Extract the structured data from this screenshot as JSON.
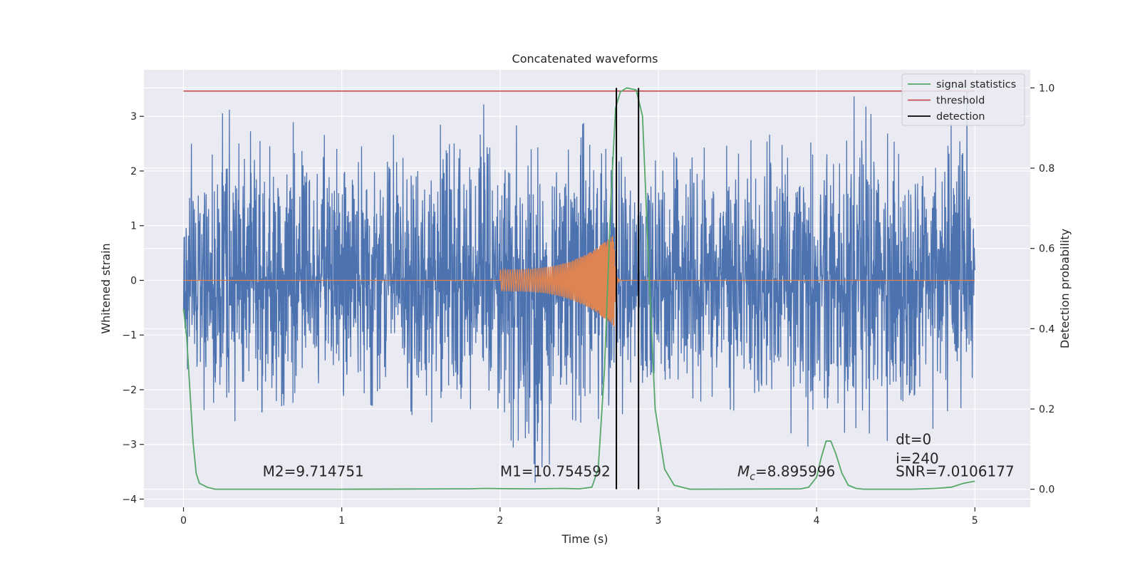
{
  "chart_data": {
    "type": "line",
    "title": "Concatenated waveforms",
    "xlabel": "Time (s)",
    "ylabel_left": "Whitened strain",
    "ylabel_right": "Detection probability",
    "xlim": [
      -0.25,
      5.35
    ],
    "ylim_left": [
      -4.15,
      3.85
    ],
    "ylim_right": [
      -0.045,
      1.045
    ],
    "grid": true,
    "legend_position": "top-right",
    "x_ticks": [
      0,
      1,
      2,
      3,
      4,
      5
    ],
    "x_tick_labels": [
      "0",
      "1",
      "2",
      "3",
      "4",
      "5"
    ],
    "y_left_ticks": [
      -4,
      -3,
      -2,
      -1,
      0,
      1,
      2,
      3
    ],
    "y_left_tick_labels": [
      "−4",
      "−3",
      "−2",
      "−1",
      "0",
      "1",
      "2",
      "3"
    ],
    "y_right_ticks": [
      0.0,
      0.2,
      0.4,
      0.6,
      0.8,
      1.0
    ],
    "y_right_tick_labels": [
      "0.0",
      "0.2",
      "0.4",
      "0.6",
      "0.8",
      "1.0"
    ],
    "colors": {
      "strain": "#4c72b0",
      "template": "#dd8452",
      "signal_statistics": "#55a868",
      "threshold": "#c44e52",
      "detection": "#000000",
      "plot_bg": "#eaeaf2",
      "grid": "#ffffff"
    },
    "series": [
      {
        "name": "",
        "role": "whitened-strain",
        "axis": "left",
        "x_range": [
          0,
          5
        ],
        "envelope_max": [
          [
            0.0,
            1.4
          ],
          [
            0.05,
            2.5
          ],
          [
            0.28,
            3.15
          ],
          [
            0.5,
            2.5
          ],
          [
            0.77,
            3.05
          ],
          [
            1.0,
            2.3
          ],
          [
            1.25,
            2.6
          ],
          [
            1.5,
            2.8
          ],
          [
            1.8,
            3.25
          ],
          [
            1.95,
            3.2
          ],
          [
            2.2,
            2.6
          ],
          [
            2.5,
            2.8
          ],
          [
            2.65,
            3.2
          ],
          [
            2.88,
            2.1
          ],
          [
            3.0,
            2.6
          ],
          [
            3.25,
            2.65
          ],
          [
            3.5,
            2.6
          ],
          [
            3.75,
            3.05
          ],
          [
            4.0,
            2.75
          ],
          [
            4.25,
            3.4
          ],
          [
            4.5,
            2.5
          ],
          [
            4.75,
            2.75
          ],
          [
            4.95,
            3.45
          ],
          [
            5.0,
            1.5
          ]
        ],
        "envelope_min": [
          [
            0.0,
            -1.4
          ],
          [
            0.1,
            -2.3
          ],
          [
            0.25,
            -2.65
          ],
          [
            0.5,
            -2.4
          ],
          [
            0.74,
            -2.2
          ],
          [
            1.0,
            -2.1
          ],
          [
            1.2,
            -2.3
          ],
          [
            1.5,
            -2.5
          ],
          [
            1.75,
            -2.85
          ],
          [
            1.9,
            -2.5
          ],
          [
            2.18,
            -3.8
          ],
          [
            2.37,
            -3.35
          ],
          [
            2.6,
            -2.55
          ],
          [
            2.85,
            -2.4
          ],
          [
            3.0,
            -2.5
          ],
          [
            3.25,
            -2.2
          ],
          [
            3.5,
            -2.4
          ],
          [
            3.75,
            -2.6
          ],
          [
            3.95,
            -3.05
          ],
          [
            4.25,
            -2.7
          ],
          [
            4.5,
            -3.0
          ],
          [
            4.7,
            -2.75
          ],
          [
            4.95,
            -2.5
          ],
          [
            5.0,
            -1.5
          ]
        ]
      },
      {
        "name": "",
        "role": "injected-template",
        "axis": "left",
        "x_range": [
          0,
          5
        ],
        "chirp_start": 2.0,
        "chirp_end": 2.72,
        "start_amplitude": 0.2,
        "peak_amplitude": 0.85
      },
      {
        "name": "signal statistics",
        "axis": "right",
        "points": [
          [
            0.0,
            0.45
          ],
          [
            0.02,
            0.38
          ],
          [
            0.04,
            0.25
          ],
          [
            0.06,
            0.12
          ],
          [
            0.08,
            0.04
          ],
          [
            0.1,
            0.015
          ],
          [
            0.15,
            0.005
          ],
          [
            0.2,
            0.0
          ],
          [
            1.0,
            0.0
          ],
          [
            1.8,
            0.001
          ],
          [
            1.9,
            0.002
          ],
          [
            2.0,
            0.0015
          ],
          [
            2.2,
            0.001
          ],
          [
            2.4,
            0.002
          ],
          [
            2.5,
            0.001
          ],
          [
            2.58,
            0.005
          ],
          [
            2.62,
            0.05
          ],
          [
            2.66,
            0.3
          ],
          [
            2.7,
            0.72
          ],
          [
            2.73,
            0.95
          ],
          [
            2.76,
            0.99
          ],
          [
            2.8,
            1.0
          ],
          [
            2.86,
            0.995
          ],
          [
            2.9,
            0.93
          ],
          [
            2.94,
            0.55
          ],
          [
            2.98,
            0.2
          ],
          [
            3.04,
            0.05
          ],
          [
            3.1,
            0.01
          ],
          [
            3.2,
            0.0
          ],
          [
            3.9,
            0.001
          ],
          [
            3.95,
            0.005
          ],
          [
            4.0,
            0.03
          ],
          [
            4.03,
            0.08
          ],
          [
            4.06,
            0.12
          ],
          [
            4.09,
            0.12
          ],
          [
            4.12,
            0.09
          ],
          [
            4.16,
            0.04
          ],
          [
            4.2,
            0.01
          ],
          [
            4.25,
            0.002
          ],
          [
            4.3,
            0.0
          ],
          [
            4.6,
            0.0
          ],
          [
            4.75,
            0.002
          ],
          [
            4.85,
            0.005
          ],
          [
            4.93,
            0.015
          ],
          [
            5.0,
            0.02
          ]
        ]
      },
      {
        "name": "threshold",
        "axis": "right",
        "points": [
          [
            0.0,
            0.992
          ],
          [
            5.0,
            0.992
          ]
        ]
      },
      {
        "name": "detection",
        "axis": "right",
        "vlines_x": [
          2.735,
          2.875
        ],
        "vline_range": [
          0.0,
          1.0
        ]
      }
    ],
    "annotations": [
      {
        "x": 0.5,
        "y_left": -3.58,
        "text": "M2=9.714751"
      },
      {
        "x": 2.0,
        "y_left": -3.58,
        "text": "M1=10.754592"
      },
      {
        "x": 3.5,
        "y_left": -3.58,
        "text_prefix": "M",
        "text_sub": "c",
        "text_suffix": "=8.895996"
      },
      {
        "x": 4.5,
        "y_left": -3.0,
        "text": "dt=0"
      },
      {
        "x": 4.5,
        "y_left": -3.35,
        "text": "i=240"
      },
      {
        "x": 4.5,
        "y_left": -3.58,
        "text": "SNR=7.0106177"
      }
    ]
  }
}
